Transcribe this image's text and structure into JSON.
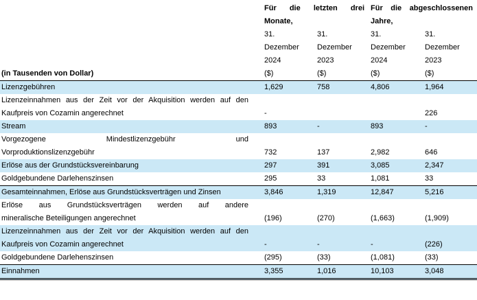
{
  "document": {
    "group_headers": [
      {
        "lines": [
          "Für die letzten drei",
          "Monate,"
        ]
      },
      {
        "lines": [
          "Für die abgeschlossenen",
          "Jahre,"
        ]
      }
    ],
    "units_label": "(in Tausenden von Dollar)",
    "col_headers": [
      {
        "lines": [
          "31.",
          "Dezember",
          "2024",
          "($)"
        ]
      },
      {
        "lines": [
          "31.",
          "Dezember",
          "2023",
          "($)"
        ]
      },
      {
        "lines": [
          "31.",
          "Dezember",
          "2024",
          "($)"
        ]
      },
      {
        "lines": [
          "31.",
          "Dezember",
          "2023",
          "($)"
        ]
      }
    ],
    "rows": [
      {
        "lines": [
          "Lizenzgebühren"
        ],
        "values": [
          "1,629",
          "758",
          "4,806",
          "1,964"
        ]
      },
      {
        "lines": [
          "Lizenzeinnahmen aus der Zeit vor der Akquisition werden auf den",
          "Kaufpreis von Cozamin angerechnet"
        ],
        "values": [
          "-",
          "",
          "",
          "226"
        ]
      },
      {
        "lines": [
          "Stream"
        ],
        "values": [
          "893",
          "-",
          "893",
          "-"
        ]
      },
      {
        "lines": [
          "Vorgezogene Mindestlizenzgebühr und",
          "Vorproduktionslizenzgebühr"
        ],
        "values": [
          "732",
          "137",
          "2,982",
          "646"
        ]
      },
      {
        "lines": [
          "Erlöse aus der Grundstücksvereinbarung"
        ],
        "values": [
          "297",
          "391",
          "3,085",
          "2,347"
        ]
      },
      {
        "lines": [
          "Goldgebundene Darlehenszinsen"
        ],
        "values": [
          "295",
          "33",
          "1,081",
          "33"
        ]
      },
      {
        "lines": [
          "Gesamteinnahmen, Erlöse aus Grundstücksverträgen und Zinsen"
        ],
        "values": [
          "3,846",
          "1,319",
          "12,847",
          "5,216"
        ]
      },
      {
        "lines": [
          "Erlöse aus Grundstücksverträgen werden auf andere",
          "mineralische Beteiligungen angerechnet"
        ],
        "values": [
          "(196)",
          "(270)",
          "(1,663)",
          "(1,909)"
        ]
      },
      {
        "lines": [
          "Lizenzeinnahmen aus der Zeit vor der Akquisition werden auf den",
          "Kaufpreis von Cozamin angerechnet"
        ],
        "values": [
          "-",
          "-",
          "-",
          "(226)"
        ]
      },
      {
        "lines": [
          "Goldgebundene Darlehenszinsen"
        ],
        "values": [
          "(295)",
          "(33)",
          "(1,081)",
          "(33)"
        ]
      },
      {
        "lines": [
          "Einnahmen"
        ],
        "values": [
          "3,355",
          "1,016",
          "10,103",
          "3,048"
        ]
      }
    ],
    "colors": {
      "row_shade": "#cbe8f6",
      "rule": "#000000"
    }
  }
}
